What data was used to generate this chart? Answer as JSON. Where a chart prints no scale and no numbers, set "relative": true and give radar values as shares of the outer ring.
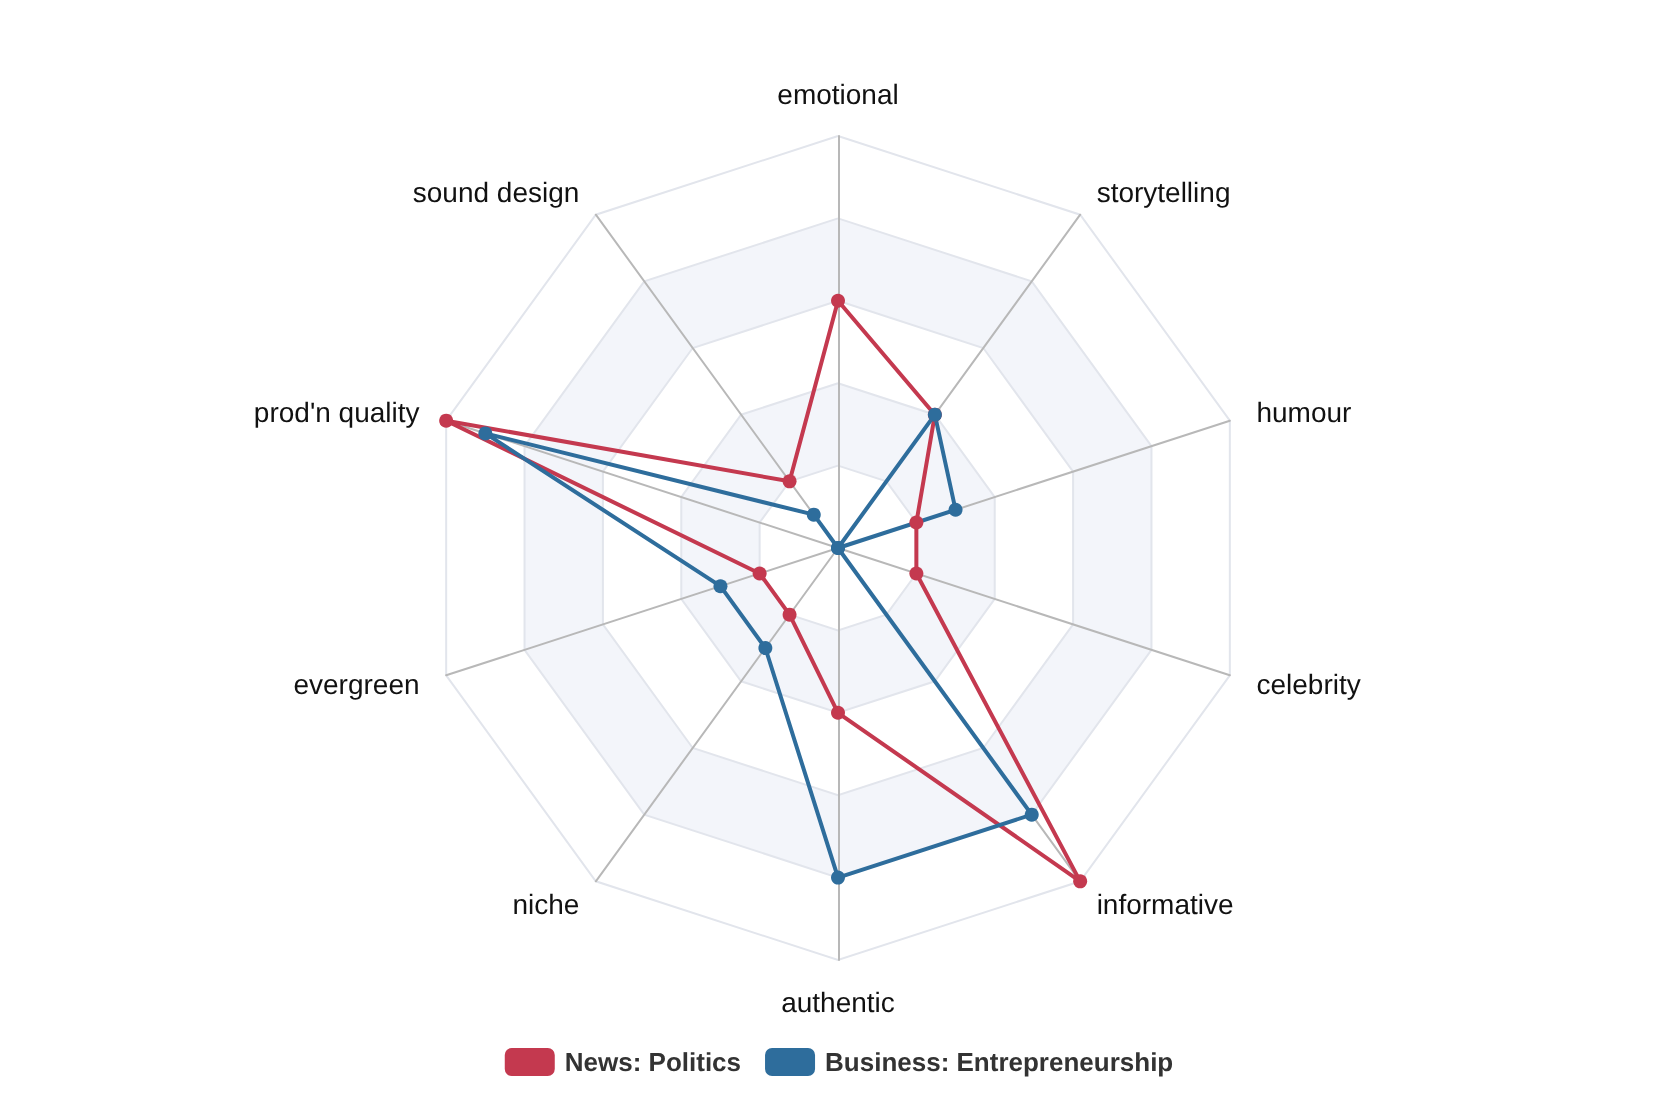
{
  "chart_data": {
    "type": "radar",
    "relative": true,
    "grid": true,
    "legend": "bottom",
    "marker": "circle",
    "categories": [
      "emotional",
      "storytelling",
      "humour",
      "celebrity",
      "informative",
      "authentic",
      "niche",
      "evergreen",
      "prod'n quality",
      "sound design"
    ],
    "series": [
      {
        "name": "News: Politics",
        "color": "#c4394f",
        "values": [
          0.6,
          0.4,
          0.2,
          0.2,
          1,
          0.4,
          0.2,
          0.2,
          1,
          0.2
        ]
      },
      {
        "name": "Business: Entrepreneurship",
        "color": "#2e6d9c",
        "values": [
          0,
          0.4,
          0.3,
          0,
          0.8,
          0.8,
          0.3,
          0.3,
          0.9,
          0.1
        ]
      }
    ]
  }
}
